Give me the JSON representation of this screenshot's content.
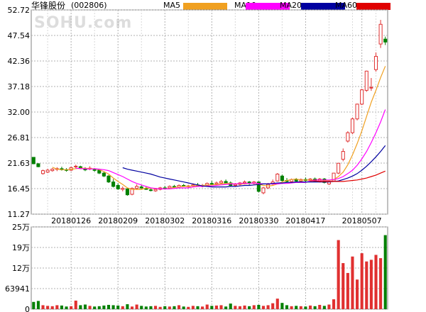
{
  "header": {
    "stock_name": "华锋股份",
    "stock_code": "(002806)",
    "watermark": "SOHU.com"
  },
  "colors": {
    "up": "#e03030",
    "down": "#008000",
    "ma5": "#f0a020",
    "ma10": "#ff00ff",
    "ma20": "#0000a0",
    "ma60": "#e00000",
    "grid": "#b0b0b0"
  },
  "chart_data": [
    {
      "type": "candlestick",
      "title": "华锋股份(002806)",
      "ylim": [
        11.27,
        52.72
      ],
      "yticks": [
        "52.72",
        "47.54",
        "42.36",
        "37.18",
        "32.00",
        "26.81",
        "21.63",
        "16.45",
        "11.27"
      ],
      "xticks": [
        "20180126",
        "20180209",
        "20180302",
        "20180316",
        "20180330",
        "20180417",
        "20180507"
      ],
      "legend": [
        "MA5",
        "MA10",
        "MA20",
        "MA60"
      ],
      "ohlc": [
        [
          22.8,
          22.8,
          21.4,
          21.5
        ],
        [
          21.5,
          21.6,
          20.8,
          20.9
        ],
        [
          19.5,
          20.3,
          19.3,
          20.1
        ],
        [
          19.8,
          20.5,
          19.6,
          20.2
        ],
        [
          20.1,
          20.6,
          19.9,
          20.4
        ],
        [
          20.4,
          20.8,
          20.0,
          20.5
        ],
        [
          20.5,
          20.9,
          20.1,
          20.3
        ],
        [
          20.3,
          20.6,
          19.9,
          20.2
        ],
        [
          20.2,
          20.9,
          20.0,
          20.7
        ],
        [
          20.9,
          21.3,
          20.6,
          21.0
        ],
        [
          20.9,
          21.1,
          20.4,
          20.6
        ],
        [
          20.4,
          20.8,
          20.0,
          20.3
        ],
        [
          20.5,
          21.0,
          20.2,
          20.6
        ],
        [
          20.3,
          20.6,
          19.9,
          20.2
        ],
        [
          20.2,
          20.5,
          19.4,
          19.6
        ],
        [
          19.6,
          19.9,
          18.8,
          19.0
        ],
        [
          19.0,
          19.2,
          17.6,
          17.8
        ],
        [
          17.8,
          18.4,
          16.7,
          16.9
        ],
        [
          17.1,
          17.5,
          16.2,
          16.4
        ],
        [
          16.3,
          16.9,
          15.9,
          16.5
        ],
        [
          16.4,
          16.6,
          15.0,
          15.2
        ],
        [
          15.3,
          16.7,
          15.1,
          16.5
        ],
        [
          16.5,
          17.3,
          16.2,
          16.9
        ],
        [
          16.8,
          17.1,
          16.3,
          16.6
        ],
        [
          16.5,
          16.9,
          16.2,
          16.3
        ],
        [
          16.2,
          16.6,
          15.9,
          16.1
        ],
        [
          16.0,
          16.5,
          15.8,
          16.3
        ],
        [
          16.3,
          16.8,
          16.1,
          16.6
        ],
        [
          16.6,
          17.0,
          16.3,
          16.5
        ],
        [
          16.6,
          17.1,
          16.4,
          16.9
        ],
        [
          16.9,
          17.2,
          16.6,
          16.8
        ],
        [
          16.8,
          17.3,
          16.6,
          17.1
        ],
        [
          17.1,
          17.4,
          16.8,
          16.9
        ],
        [
          16.9,
          17.2,
          16.6,
          17.0
        ],
        [
          17.0,
          17.5,
          16.8,
          17.2
        ],
        [
          17.2,
          17.6,
          16.9,
          17.0
        ],
        [
          17.0,
          17.4,
          16.7,
          17.1
        ],
        [
          17.1,
          17.7,
          16.9,
          17.5
        ],
        [
          17.5,
          18.0,
          17.2,
          17.4
        ],
        [
          17.4,
          17.9,
          17.1,
          17.6
        ],
        [
          17.6,
          18.2,
          17.4,
          17.9
        ],
        [
          17.9,
          18.3,
          17.5,
          17.6
        ],
        [
          17.6,
          17.9,
          16.9,
          17.1
        ],
        [
          17.1,
          17.6,
          16.8,
          17.3
        ],
        [
          17.3,
          17.8,
          17.1,
          17.6
        ],
        [
          17.6,
          18.1,
          17.3,
          17.8
        ],
        [
          17.8,
          18.0,
          17.2,
          17.5
        ],
        [
          17.5,
          18.0,
          17.3,
          17.8
        ],
        [
          17.8,
          17.9,
          15.7,
          15.9
        ],
        [
          15.6,
          16.8,
          15.3,
          16.6
        ],
        [
          16.6,
          17.6,
          16.4,
          17.3
        ],
        [
          17.4,
          18.3,
          17.1,
          17.8
        ],
        [
          18.0,
          19.6,
          17.9,
          19.4
        ],
        [
          19.0,
          19.3,
          17.9,
          18.1
        ],
        [
          18.1,
          18.6,
          17.7,
          17.9
        ],
        [
          17.9,
          18.5,
          17.6,
          18.3
        ],
        [
          18.3,
          18.6,
          17.8,
          18.0
        ],
        [
          18.0,
          18.5,
          17.7,
          18.3
        ],
        [
          18.3,
          18.7,
          17.9,
          18.1
        ],
        [
          18.1,
          18.6,
          17.8,
          18.4
        ],
        [
          18.4,
          18.7,
          17.9,
          18.0
        ],
        [
          18.0,
          18.6,
          17.7,
          18.4
        ],
        [
          18.4,
          18.6,
          17.5,
          17.7
        ],
        [
          17.4,
          18.1,
          17.2,
          17.9
        ],
        [
          18.0,
          19.6,
          17.9,
          19.6
        ],
        [
          19.6,
          21.6,
          19.4,
          21.6
        ],
        [
          22.4,
          24.6,
          22.0,
          24.0
        ],
        [
          26.1,
          28.1,
          25.8,
          27.8
        ],
        [
          27.8,
          30.9,
          27.5,
          30.6
        ],
        [
          30.6,
          33.7,
          30.3,
          33.6
        ],
        [
          33.6,
          36.7,
          33.4,
          36.5
        ],
        [
          36.4,
          40.4,
          36.1,
          40.3
        ],
        [
          36.9,
          38.9,
          36.3,
          37.0
        ],
        [
          40.6,
          44.1,
          40.2,
          43.3
        ],
        [
          45.8,
          50.7,
          45.0,
          49.8
        ],
        [
          46.8,
          47.3,
          45.6,
          46.2
        ]
      ],
      "series": [
        {
          "name": "MA5",
          "values": [
            null,
            null,
            null,
            null,
            20.8,
            20.4,
            20.3,
            20.3,
            20.4,
            20.5,
            20.6,
            20.6,
            20.5,
            20.5,
            20.3,
            19.9,
            19.4,
            18.6,
            17.9,
            17.3,
            16.6,
            16.3,
            16.3,
            16.3,
            16.6,
            16.5,
            16.5,
            16.4,
            16.4,
            16.5,
            16.7,
            16.8,
            16.9,
            16.9,
            17.0,
            17.1,
            17.1,
            17.2,
            17.2,
            17.3,
            17.4,
            17.5,
            17.5,
            17.4,
            17.4,
            17.4,
            17.5,
            17.6,
            17.3,
            17.1,
            17.0,
            17.1,
            17.4,
            17.8,
            18.1,
            18.3,
            18.4,
            18.2,
            18.2,
            18.2,
            18.2,
            18.2,
            18.1,
            18.1,
            18.3,
            18.9,
            19.8,
            21.3,
            23.3,
            25.6,
            28.2,
            31.1,
            34.0,
            36.4,
            39.0,
            41.3
          ]
        },
        {
          "name": "MA10",
          "values": [
            null,
            null,
            null,
            null,
            null,
            null,
            null,
            null,
            null,
            20.6,
            20.5,
            20.5,
            20.4,
            20.5,
            20.4,
            20.3,
            20.1,
            19.7,
            19.3,
            18.9,
            18.4,
            17.9,
            17.5,
            17.2,
            16.9,
            16.6,
            16.5,
            16.4,
            16.4,
            16.4,
            16.5,
            16.6,
            16.6,
            16.6,
            16.8,
            16.9,
            16.9,
            17.0,
            17.0,
            17.1,
            17.2,
            17.3,
            17.4,
            17.4,
            17.5,
            17.5,
            17.5,
            17.6,
            17.5,
            17.4,
            17.4,
            17.4,
            17.4,
            17.5,
            17.5,
            17.6,
            17.7,
            17.7,
            17.7,
            18.0,
            18.2,
            18.2,
            18.2,
            18.2,
            18.3,
            18.5,
            18.9,
            19.5,
            20.2,
            21.2,
            22.5,
            24.0,
            25.8,
            27.8,
            30.0,
            32.5
          ]
        },
        {
          "name": "MA20",
          "values": [
            null,
            null,
            null,
            null,
            null,
            null,
            null,
            null,
            null,
            null,
            null,
            null,
            null,
            null,
            null,
            null,
            null,
            null,
            null,
            20.7,
            20.4,
            20.2,
            20.0,
            19.8,
            19.6,
            19.4,
            19.1,
            18.8,
            18.6,
            18.4,
            18.2,
            18.0,
            17.8,
            17.6,
            17.4,
            17.2,
            17.0,
            16.9,
            16.8,
            16.8,
            16.8,
            16.8,
            16.9,
            16.9,
            17.0,
            17.1,
            17.1,
            17.2,
            17.3,
            17.4,
            17.4,
            17.5,
            17.6,
            17.6,
            17.7,
            17.7,
            17.8,
            17.8,
            17.8,
            17.8,
            17.8,
            17.8,
            17.8,
            17.8,
            17.9,
            18.0,
            18.3,
            18.6,
            19.0,
            19.5,
            20.2,
            21.0,
            21.9,
            22.9,
            24.0,
            25.2
          ]
        },
        {
          "name": "MA60",
          "values": [
            null,
            null,
            null,
            null,
            null,
            null,
            null,
            null,
            null,
            null,
            null,
            null,
            null,
            null,
            null,
            null,
            null,
            null,
            null,
            null,
            null,
            null,
            null,
            null,
            null,
            null,
            null,
            null,
            null,
            null,
            null,
            null,
            null,
            null,
            null,
            null,
            null,
            null,
            null,
            null,
            null,
            null,
            null,
            null,
            null,
            null,
            null,
            null,
            null,
            null,
            null,
            null,
            null,
            null,
            null,
            null,
            null,
            null,
            null,
            18.0,
            18.0,
            17.9,
            17.9,
            17.9,
            17.9,
            17.9,
            17.9,
            18.0,
            18.1,
            18.2,
            18.4,
            18.6,
            18.9,
            19.2,
            19.6,
            20.0
          ]
        }
      ]
    },
    {
      "type": "bar",
      "title": "",
      "ylim": [
        0,
        250000
      ],
      "yticks": [
        "25万",
        "19万",
        "12万",
        "63941",
        "0"
      ],
      "values": [
        22000,
        25000,
        12000,
        10000,
        9000,
        12000,
        11000,
        8000,
        9000,
        26000,
        12000,
        14000,
        10000,
        8000,
        9000,
        11000,
        13000,
        12000,
        11000,
        9000,
        15000,
        8000,
        14000,
        10000,
        8000,
        9000,
        10000,
        7000,
        9000,
        8000,
        9000,
        12000,
        8000,
        7000,
        10000,
        9000,
        8000,
        14000,
        10000,
        11000,
        12000,
        8000,
        17000,
        10000,
        9000,
        11000,
        9000,
        12000,
        13000,
        10000,
        12000,
        18000,
        32000,
        19000,
        12000,
        9000,
        10000,
        9000,
        8000,
        11000,
        9000,
        13000,
        10000,
        14000,
        30000,
        210000,
        140000,
        110000,
        160000,
        90000,
        170000,
        145000,
        150000,
        165000,
        155000,
        225000
      ]
    }
  ]
}
